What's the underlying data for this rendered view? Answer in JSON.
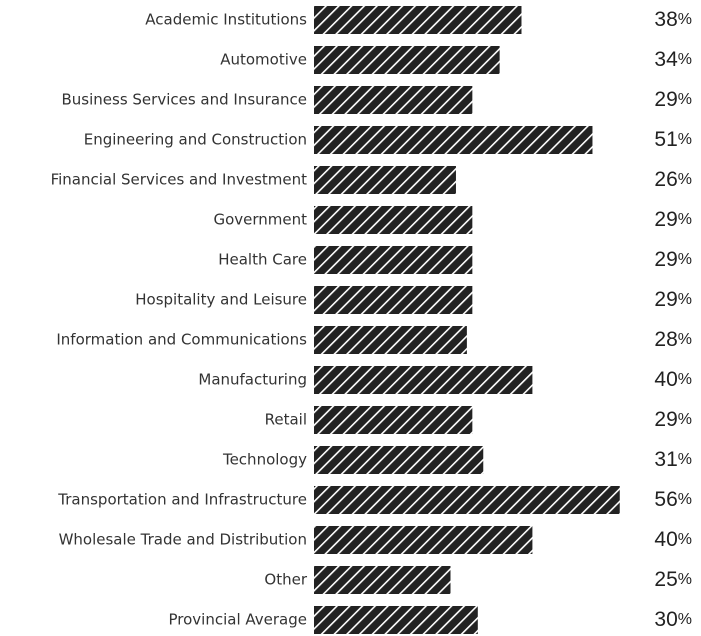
{
  "chart_data": {
    "type": "bar",
    "orientation": "horizontal",
    "categories": [
      "Academic Institutions",
      "Automotive",
      "Business Services and Insurance",
      "Engineering and Construction",
      "Financial Services and Investment",
      "Government",
      "Health Care",
      "Hospitality and Leisure",
      "Information and Communications",
      "Manufacturing",
      "Retail",
      "Technology",
      "Transportation and Infrastructure",
      "Wholesale Trade and Distribution",
      "Other",
      "Provincial Average"
    ],
    "values": [
      38,
      34,
      29,
      51,
      26,
      29,
      29,
      29,
      28,
      40,
      29,
      31,
      56,
      40,
      25,
      30
    ],
    "value_labels": [
      "38%",
      "34%",
      "29%",
      "51%",
      "26%",
      "29%",
      "29%",
      "29%",
      "28%",
      "40%",
      "29%",
      "31%",
      "56%",
      "40%",
      "25%",
      "30%"
    ],
    "color": "#222222"
  }
}
